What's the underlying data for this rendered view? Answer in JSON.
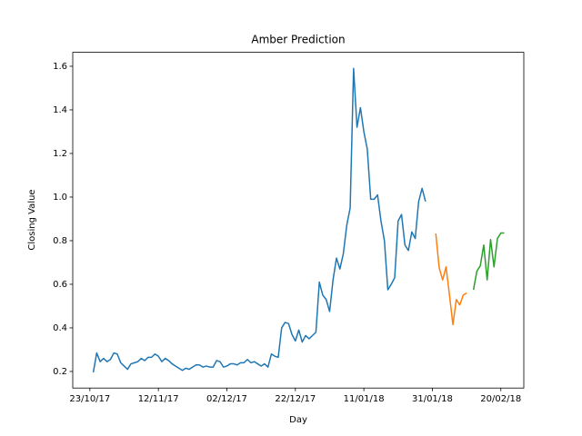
{
  "chart_data": {
    "type": "line",
    "title": "Amber Prediction",
    "xlabel": "Day",
    "ylabel": "Closing Value",
    "xlim": [
      -5,
      126.7
    ],
    "ylim": [
      0.124,
      1.664
    ],
    "xticks": [
      {
        "value": 0,
        "label": "23/10/17"
      },
      {
        "value": 20,
        "label": "12/11/17"
      },
      {
        "value": 40,
        "label": "02/12/17"
      },
      {
        "value": 60,
        "label": "22/12/17"
      },
      {
        "value": 80,
        "label": "11/01/18"
      },
      {
        "value": 100,
        "label": "31/01/18"
      },
      {
        "value": 120,
        "label": "20/02/18"
      }
    ],
    "yticks": [
      0.2,
      0.4,
      0.6,
      0.8,
      {
        "value": 1,
        "label": "1.0"
      },
      1.2,
      1.4,
      1.6
    ],
    "series": [
      {
        "color": "#1f77b4",
        "x": [
          1,
          2,
          3,
          4,
          5,
          6,
          7,
          8,
          9,
          10,
          11,
          12,
          13,
          14,
          15,
          16,
          17,
          18,
          19,
          20,
          21,
          22,
          23,
          24,
          25,
          26,
          27,
          28,
          29,
          30,
          31,
          32,
          33,
          34,
          35,
          36,
          37,
          38,
          39,
          40,
          41,
          42,
          43,
          44,
          45,
          46,
          47,
          48,
          49,
          50,
          51,
          52,
          53,
          54,
          55,
          56,
          57,
          58,
          59,
          60,
          61,
          62,
          63,
          64,
          65,
          66,
          67,
          68,
          69,
          70,
          71,
          72,
          73,
          74,
          75,
          76,
          77,
          78,
          79,
          80,
          81,
          82,
          83,
          84,
          85,
          86,
          87,
          88,
          89,
          90,
          91,
          92,
          93,
          94,
          95,
          96,
          97,
          98
        ],
        "values": [
          0.196,
          0.285,
          0.245,
          0.26,
          0.245,
          0.255,
          0.285,
          0.28,
          0.24,
          0.225,
          0.21,
          0.235,
          0.24,
          0.245,
          0.26,
          0.25,
          0.265,
          0.265,
          0.28,
          0.27,
          0.245,
          0.26,
          0.25,
          0.235,
          0.225,
          0.215,
          0.205,
          0.215,
          0.21,
          0.22,
          0.23,
          0.23,
          0.22,
          0.225,
          0.22,
          0.22,
          0.25,
          0.245,
          0.22,
          0.225,
          0.235,
          0.235,
          0.23,
          0.24,
          0.24,
          0.255,
          0.24,
          0.245,
          0.235,
          0.225,
          0.235,
          0.22,
          0.28,
          0.27,
          0.265,
          0.4,
          0.425,
          0.42,
          0.37,
          0.34,
          0.39,
          0.335,
          0.365,
          0.35,
          0.365,
          0.38,
          0.61,
          0.55,
          0.53,
          0.475,
          0.62,
          0.72,
          0.67,
          0.74,
          0.87,
          0.95,
          1.59,
          1.32,
          1.41,
          1.3,
          1.22,
          0.99,
          0.99,
          1.01,
          0.89,
          0.8,
          0.575,
          0.6,
          0.63,
          0.89,
          0.92,
          0.78,
          0.755,
          0.84,
          0.81,
          0.98,
          1.04,
          0.98
        ]
      },
      {
        "color": "#ff7f0e",
        "x": [
          101,
          102,
          103,
          104,
          105,
          106,
          107,
          108,
          109,
          110
        ],
        "values": [
          0.833,
          0.675,
          0.62,
          0.68,
          0.55,
          0.415,
          0.53,
          0.505,
          0.55,
          0.56
        ]
      },
      {
        "color": "#2ca02c",
        "x": [
          112,
          113,
          114,
          115,
          116,
          117,
          118,
          119,
          120,
          121
        ],
        "values": [
          0.575,
          0.66,
          0.685,
          0.78,
          0.62,
          0.805,
          0.68,
          0.81,
          0.835,
          0.835
        ]
      }
    ]
  }
}
